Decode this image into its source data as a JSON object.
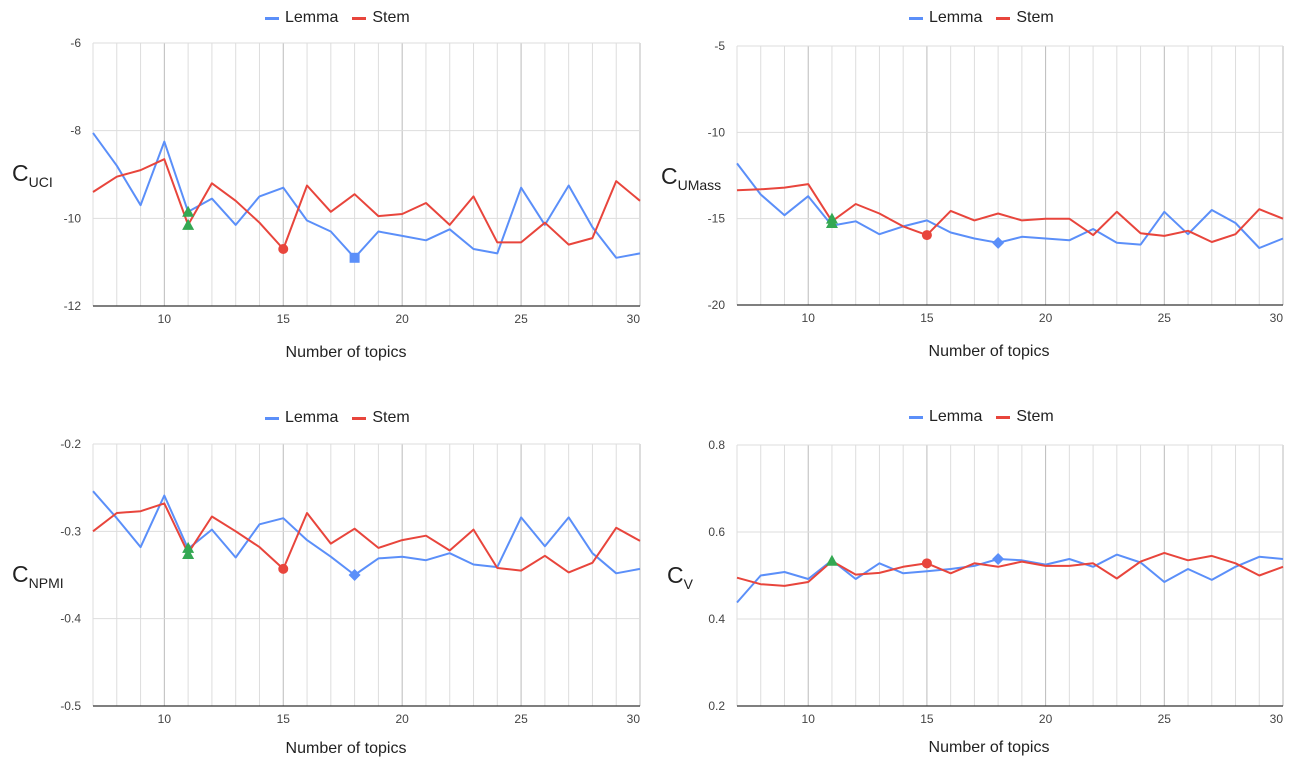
{
  "colors": {
    "lemma": "#5b8ff9",
    "stem": "#e8453c",
    "marker": "#34a853",
    "grid": "#dddddd",
    "grid_major": "#bbbbbb",
    "axis": "#333333"
  },
  "chart_data": [
    {
      "id": "uci",
      "type": "line",
      "ylabel_main": "C",
      "ylabel_sub": "UCI",
      "xlabel": "Number of topics",
      "xlim": [
        7,
        30
      ],
      "ylim": [
        -12,
        -6
      ],
      "x_ticks": [
        10,
        15,
        20,
        25,
        30
      ],
      "y_ticks": [
        -12,
        -10,
        -8,
        -6
      ],
      "y_tick_labels": [
        "-12",
        "-10",
        "-8",
        "-6"
      ],
      "legend": [
        "Lemma",
        "Stem"
      ],
      "x": [
        7,
        8,
        9,
        10,
        11,
        12,
        13,
        14,
        15,
        16,
        17,
        18,
        19,
        20,
        21,
        22,
        23,
        24,
        25,
        26,
        27,
        28,
        29,
        30
      ],
      "series": [
        {
          "name": "Lemma",
          "values": [
            -8.05,
            -8.8,
            -9.7,
            -8.25,
            -9.85,
            -9.55,
            -10.15,
            -9.5,
            -9.3,
            -10.05,
            -10.3,
            -10.9,
            -10.3,
            -10.4,
            -10.5,
            -10.25,
            -10.7,
            -10.8,
            -9.3,
            -10.15,
            -9.25,
            -10.2,
            -10.9,
            -10.8
          ]
        },
        {
          "name": "Stem",
          "values": [
            -9.4,
            -9.05,
            -8.9,
            -8.65,
            -10.15,
            -9.2,
            -9.6,
            -10.1,
            -10.7,
            -9.25,
            -9.85,
            -9.45,
            -9.95,
            -9.9,
            -9.65,
            -10.15,
            -9.5,
            -10.55,
            -10.55,
            -10.1,
            -10.6,
            -10.45,
            -9.15,
            -9.6
          ]
        }
      ],
      "markers": [
        {
          "shape": "triangle",
          "color": "marker",
          "x": 11,
          "y": -9.85
        },
        {
          "shape": "triangle",
          "color": "marker",
          "x": 11,
          "y": -10.15
        },
        {
          "shape": "square",
          "color": "lemma",
          "x": 18,
          "y": -10.9
        },
        {
          "shape": "circle",
          "color": "stem",
          "x": 15,
          "y": -10.7
        }
      ]
    },
    {
      "id": "umass",
      "type": "line",
      "ylabel_main": "C",
      "ylabel_sub": "UMass",
      "xlabel": "Number of topics",
      "xlim": [
        7,
        30
      ],
      "ylim": [
        -20,
        -5
      ],
      "x_ticks": [
        10,
        15,
        20,
        25,
        30
      ],
      "y_ticks": [
        -20,
        -15,
        -10,
        -5
      ],
      "y_tick_labels": [
        "-20",
        "-15",
        "-10",
        "-5"
      ],
      "legend": [
        "Lemma",
        "Stem"
      ],
      "x": [
        7,
        8,
        9,
        10,
        11,
        12,
        13,
        14,
        15,
        16,
        17,
        18,
        19,
        20,
        21,
        22,
        23,
        24,
        25,
        26,
        27,
        28,
        29,
        30
      ],
      "series": [
        {
          "name": "Lemma",
          "values": [
            -11.8,
            -13.6,
            -14.8,
            -13.7,
            -15.4,
            -15.15,
            -15.9,
            -15.45,
            -15.1,
            -15.8,
            -16.15,
            -16.4,
            -16.05,
            -16.15,
            -16.25,
            -15.6,
            -16.4,
            -16.5,
            -14.6,
            -15.9,
            -14.5,
            -15.25,
            -16.7,
            -16.15
          ]
        },
        {
          "name": "Stem",
          "values": [
            -13.35,
            -13.3,
            -13.2,
            -13.0,
            -15.15,
            -14.15,
            -14.7,
            -15.45,
            -15.95,
            -14.55,
            -15.1,
            -14.7,
            -15.1,
            -15.0,
            -15.0,
            -15.95,
            -14.6,
            -15.85,
            -16.0,
            -15.7,
            -16.35,
            -15.9,
            -14.45,
            -15.0
          ]
        }
      ],
      "markers": [
        {
          "shape": "triangle",
          "color": "marker",
          "x": 11,
          "y": -15.0
        },
        {
          "shape": "triangle",
          "color": "marker",
          "x": 11,
          "y": -15.25
        },
        {
          "shape": "diamond",
          "color": "lemma",
          "x": 18,
          "y": -16.4
        },
        {
          "shape": "circle",
          "color": "stem",
          "x": 15,
          "y": -15.95
        }
      ]
    },
    {
      "id": "npmi",
      "type": "line",
      "ylabel_main": "C",
      "ylabel_sub": "NPMI",
      "xlabel": "Number of topics",
      "xlim": [
        7,
        30
      ],
      "ylim": [
        -0.5,
        -0.2
      ],
      "x_ticks": [
        10,
        15,
        20,
        25,
        30
      ],
      "y_ticks": [
        -0.5,
        -0.4,
        -0.3,
        -0.2
      ],
      "y_tick_labels": [
        "-0.5",
        "-0.4",
        "-0.3",
        "-0.2"
      ],
      "legend": [
        "Lemma",
        "Stem"
      ],
      "x": [
        7,
        8,
        9,
        10,
        11,
        12,
        13,
        14,
        15,
        16,
        17,
        18,
        19,
        20,
        21,
        22,
        23,
        24,
        25,
        26,
        27,
        28,
        29,
        30
      ],
      "series": [
        {
          "name": "Lemma",
          "values": [
            -0.254,
            -0.285,
            -0.318,
            -0.259,
            -0.32,
            -0.298,
            -0.33,
            -0.292,
            -0.285,
            -0.31,
            -0.329,
            -0.35,
            -0.331,
            -0.329,
            -0.333,
            -0.325,
            -0.338,
            -0.341,
            -0.284,
            -0.317,
            -0.284,
            -0.325,
            -0.348,
            -0.343
          ]
        },
        {
          "name": "Stem",
          "values": [
            -0.3,
            -0.279,
            -0.277,
            -0.268,
            -0.325,
            -0.283,
            -0.3,
            -0.318,
            -0.343,
            -0.279,
            -0.314,
            -0.297,
            -0.319,
            -0.31,
            -0.305,
            -0.322,
            -0.298,
            -0.342,
            -0.345,
            -0.328,
            -0.347,
            -0.336,
            -0.296,
            -0.311
          ]
        }
      ],
      "markers": [
        {
          "shape": "triangle",
          "color": "marker",
          "x": 11,
          "y": -0.319
        },
        {
          "shape": "triangle",
          "color": "marker",
          "x": 11,
          "y": -0.326
        },
        {
          "shape": "diamond",
          "color": "lemma",
          "x": 18,
          "y": -0.35
        },
        {
          "shape": "circle",
          "color": "stem",
          "x": 15,
          "y": -0.343
        }
      ]
    },
    {
      "id": "cv",
      "type": "line",
      "ylabel_main": "C",
      "ylabel_sub": "V",
      "xlabel": "Number of topics",
      "xlim": [
        7,
        30
      ],
      "ylim": [
        0.2,
        0.8
      ],
      "x_ticks": [
        10,
        15,
        20,
        25,
        30
      ],
      "y_ticks": [
        0.2,
        0.4,
        0.6,
        0.8
      ],
      "y_tick_labels": [
        "0.2",
        "0.4",
        "0.6",
        "0.8"
      ],
      "legend": [
        "Lemma",
        "Stem"
      ],
      "x": [
        7,
        8,
        9,
        10,
        11,
        12,
        13,
        14,
        15,
        16,
        17,
        18,
        19,
        20,
        21,
        22,
        23,
        24,
        25,
        26,
        27,
        28,
        29,
        30
      ],
      "series": [
        {
          "name": "Lemma",
          "values": [
            0.438,
            0.5,
            0.508,
            0.492,
            0.535,
            0.492,
            0.528,
            0.505,
            0.51,
            0.515,
            0.522,
            0.538,
            0.535,
            0.525,
            0.538,
            0.52,
            0.548,
            0.53,
            0.485,
            0.515,
            0.49,
            0.52,
            0.543,
            0.538
          ]
        },
        {
          "name": "Stem",
          "values": [
            0.495,
            0.48,
            0.476,
            0.485,
            0.533,
            0.502,
            0.506,
            0.52,
            0.528,
            0.505,
            0.528,
            0.52,
            0.532,
            0.522,
            0.522,
            0.528,
            0.493,
            0.532,
            0.552,
            0.535,
            0.545,
            0.528,
            0.5,
            0.52
          ]
        }
      ],
      "markers": [
        {
          "shape": "triangle",
          "color": "marker",
          "x": 11,
          "y": 0.534
        },
        {
          "shape": "diamond",
          "color": "lemma",
          "x": 18,
          "y": 0.538
        },
        {
          "shape": "circle",
          "color": "stem",
          "x": 15,
          "y": 0.528
        }
      ]
    }
  ]
}
